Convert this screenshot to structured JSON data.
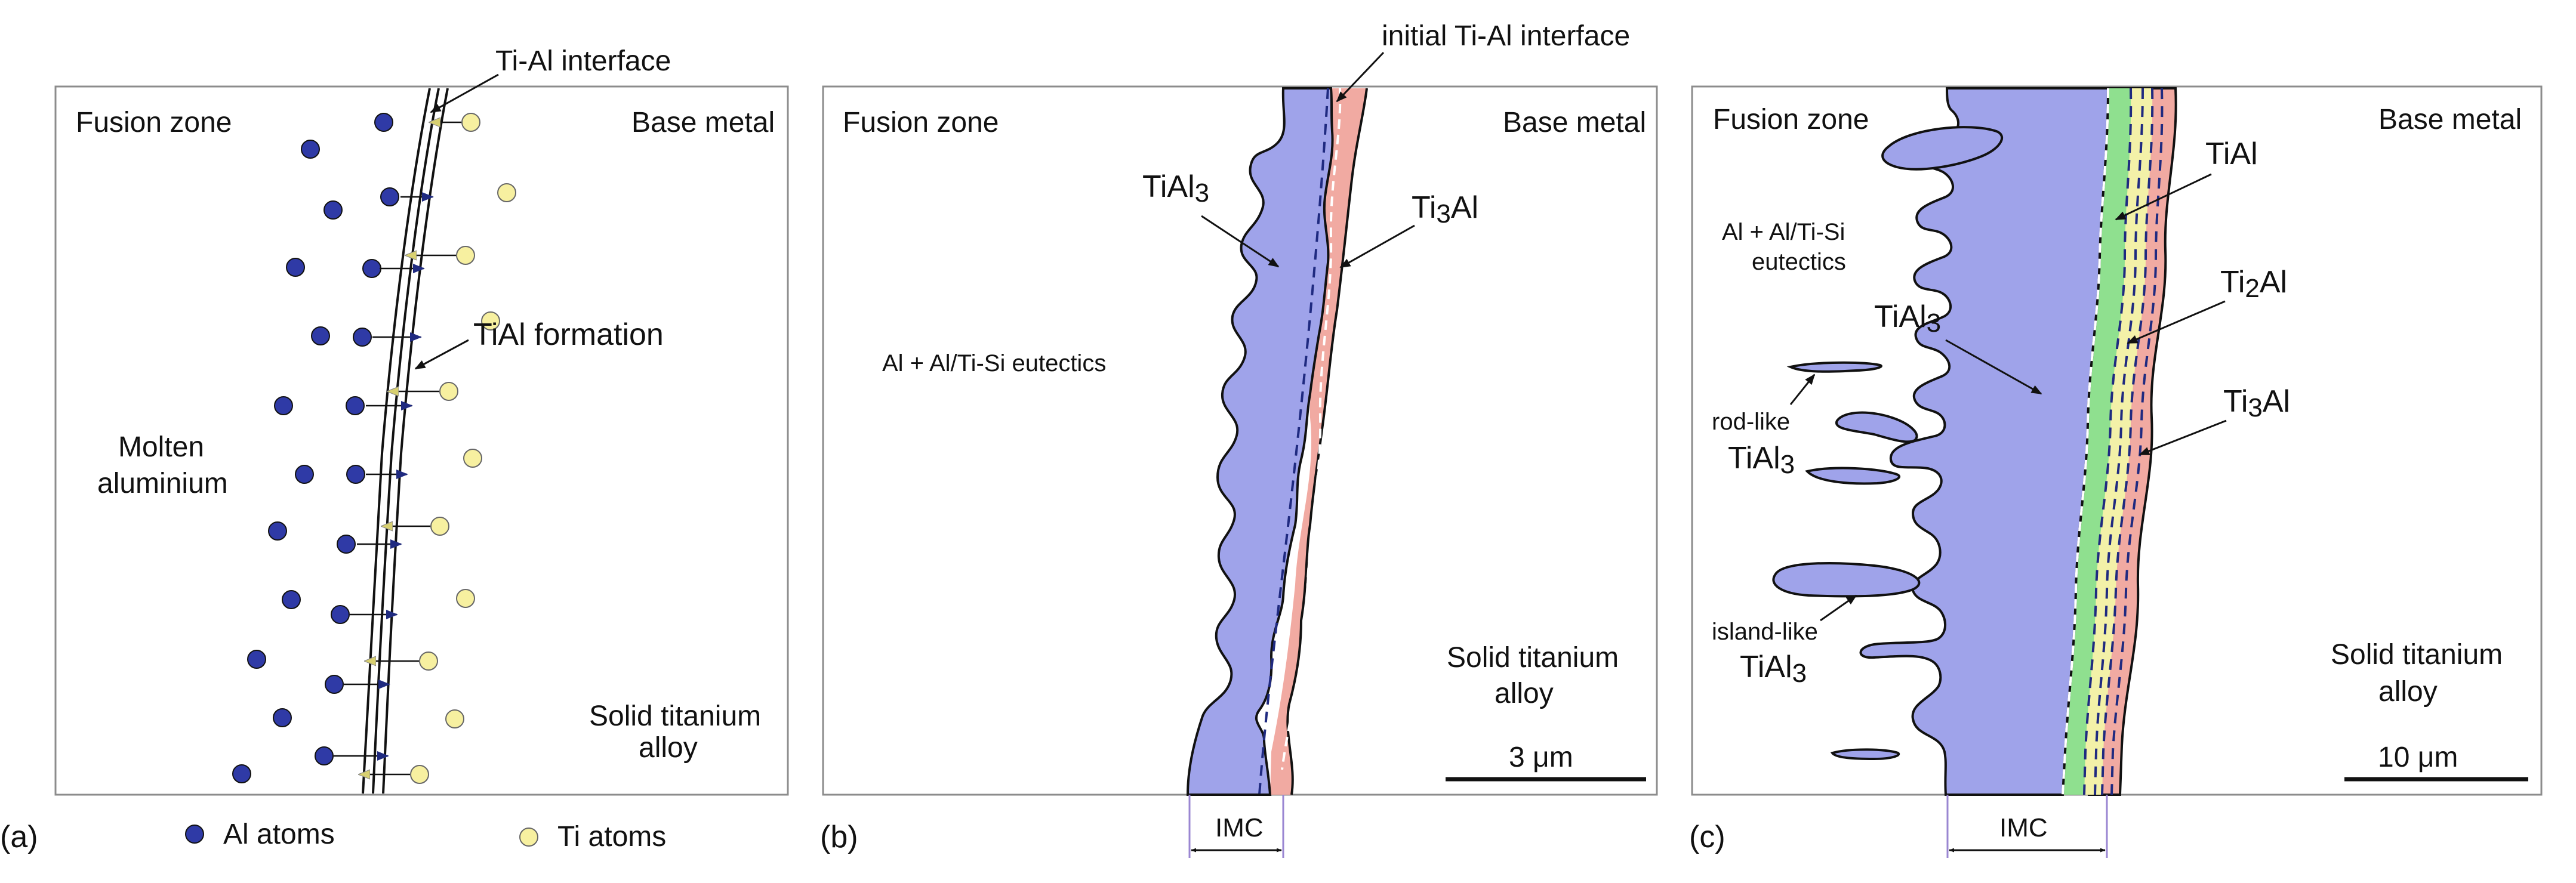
{
  "colors": {
    "al_atom": "#2f3aa6",
    "ti_atom": "#f7f0a0",
    "tial3": "#9fa3ea",
    "ti3al": "#f1aaa2",
    "tial": "#8fe08f",
    "ti2al": "#f3f1a8",
    "imc_bracket": "#9a86d2"
  },
  "panel_a": {
    "tag": "(a)",
    "fusion_zone": "Fusion zone",
    "base_metal": "Base metal",
    "interface": "Ti-Al interface",
    "tial_formation": "TiAl formation",
    "molten_line1": "Molten",
    "molten_line2": "aluminium",
    "solid_line1": "Solid titanium",
    "solid_line2": "alloy",
    "legend_al": "Al atoms",
    "legend_ti": "Ti atoms"
  },
  "panel_b": {
    "tag": "(b)",
    "fusion_zone": "Fusion zone",
    "base_metal": "Base metal",
    "initial_interface": "initial Ti-Al interface",
    "tial3": "TiAl",
    "tial3_sub": "3",
    "ti3al_main": "Ti",
    "ti3al_sub": "3",
    "ti3al_end": "Al",
    "eutectics": "Al + Al/Ti-Si eutectics",
    "solid_line1": "Solid titanium",
    "solid_line2": "alloy",
    "scale": "3 μm",
    "imc": "IMC"
  },
  "panel_c": {
    "tag": "(c)",
    "fusion_zone": "Fusion zone",
    "base_metal": "Base metal",
    "eutectics_line1": "Al + Al/Ti-Si",
    "eutectics_line2": "eutectics",
    "tial3": "TiAl",
    "tial3_sub": "3",
    "tial": "TiAl",
    "ti2al_main": "Ti",
    "ti2al_sub": "2",
    "ti2al_end": "Al",
    "ti3al_main": "Ti",
    "ti3al_sub": "3",
    "ti3al_end": "Al",
    "rod_like": "rod-like",
    "island_like": "island-like",
    "rod_tial3": "TiAl",
    "rod_tial3_sub": "3",
    "island_tial3": "TiAl",
    "island_tial3_sub": "3",
    "solid_line1": "Solid titanium",
    "solid_line2": "alloy",
    "scale": "10 μm",
    "imc": "IMC"
  }
}
